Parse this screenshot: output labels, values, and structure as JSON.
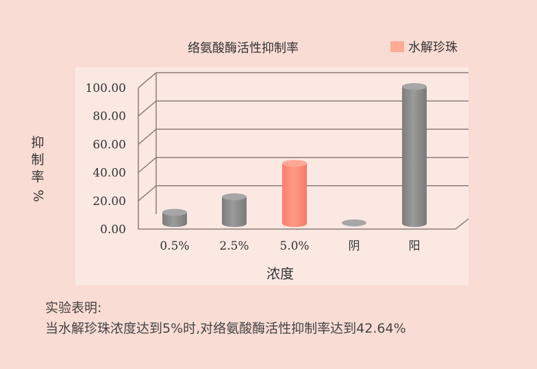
{
  "chart_data": {
    "type": "bar",
    "title": "络氨酸酶活性抑制率",
    "xlabel": "浓度",
    "ylabel": "抑制率",
    "ylabel_unit": "%",
    "categories": [
      "0.5%",
      "2.5%",
      "5.0%",
      "阴",
      "阳"
    ],
    "values": [
      8,
      19,
      42.64,
      0.5,
      97
    ],
    "highlight_index": 2,
    "ylim": [
      0,
      100
    ],
    "yticks": [
      "0.00",
      "20.00",
      "40.00",
      "60.00",
      "80.00",
      "100.00"
    ],
    "ytick_values": [
      0,
      20,
      40,
      60,
      80,
      100
    ],
    "grid": true,
    "legend": {
      "label": "水解珍珠",
      "position": "top-right"
    },
    "colors": {
      "default_bar": "#8e8e8e",
      "highlight_bar": "#ff8b78",
      "legend_swatch": "#ffab98",
      "grid": "#8a7b78"
    }
  },
  "conclusion": {
    "heading": "实验表明:",
    "text": "当水解珍珠浓度达到5%时,对络氨酸酶活性抑制率达到42.64%"
  }
}
